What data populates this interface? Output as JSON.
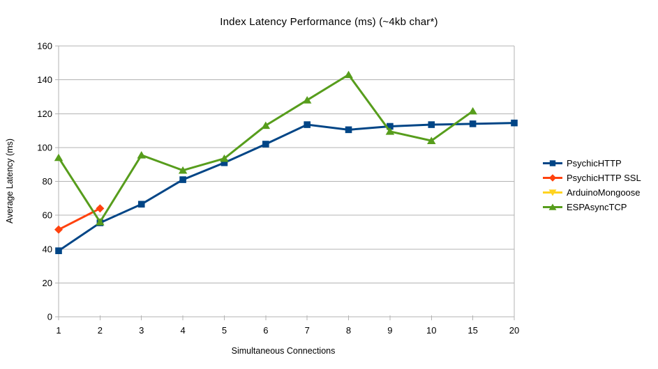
{
  "chart_data": {
    "type": "line",
    "title": "Index Latency Performance (ms) (~4kb char*)",
    "xlabel": "Simultaneous Connections",
    "ylabel": "Average Latency (ms)",
    "categories": [
      "1",
      "2",
      "3",
      "4",
      "5",
      "6",
      "7",
      "8",
      "9",
      "10",
      "15",
      "20"
    ],
    "ylim": [
      0,
      160
    ],
    "ytick_step": 20,
    "grid": "horizontal-only",
    "legend_position": "right",
    "axis_color": "#b3b3b3",
    "grid_color": "#b3b3b3",
    "text_color": "#000000",
    "background": "#ffffff",
    "series": [
      {
        "name": "PsychicHTTP",
        "color": "#004586",
        "marker": "square",
        "values": [
          39,
          55.5,
          66.5,
          81,
          91,
          102,
          113.5,
          110.5,
          112.5,
          113.5,
          114,
          114.5
        ]
      },
      {
        "name": "PsychicHTTP SSL",
        "color": "#ff420e",
        "marker": "diamond",
        "values": [
          51.5,
          64,
          null,
          null,
          null,
          null,
          null,
          null,
          null,
          null,
          null,
          null
        ]
      },
      {
        "name": "ArduinoMongoose",
        "color": "#ffd320",
        "marker": "triangle-down",
        "values": [
          null,
          null,
          null,
          null,
          null,
          null,
          null,
          null,
          null,
          null,
          null,
          null
        ]
      },
      {
        "name": "ESPAsyncTCP",
        "color": "#579d1c",
        "marker": "triangle-up",
        "values": [
          94,
          56,
          95.5,
          86.5,
          93.5,
          113,
          128,
          143,
          109.5,
          104,
          121.5,
          null
        ]
      }
    ]
  }
}
